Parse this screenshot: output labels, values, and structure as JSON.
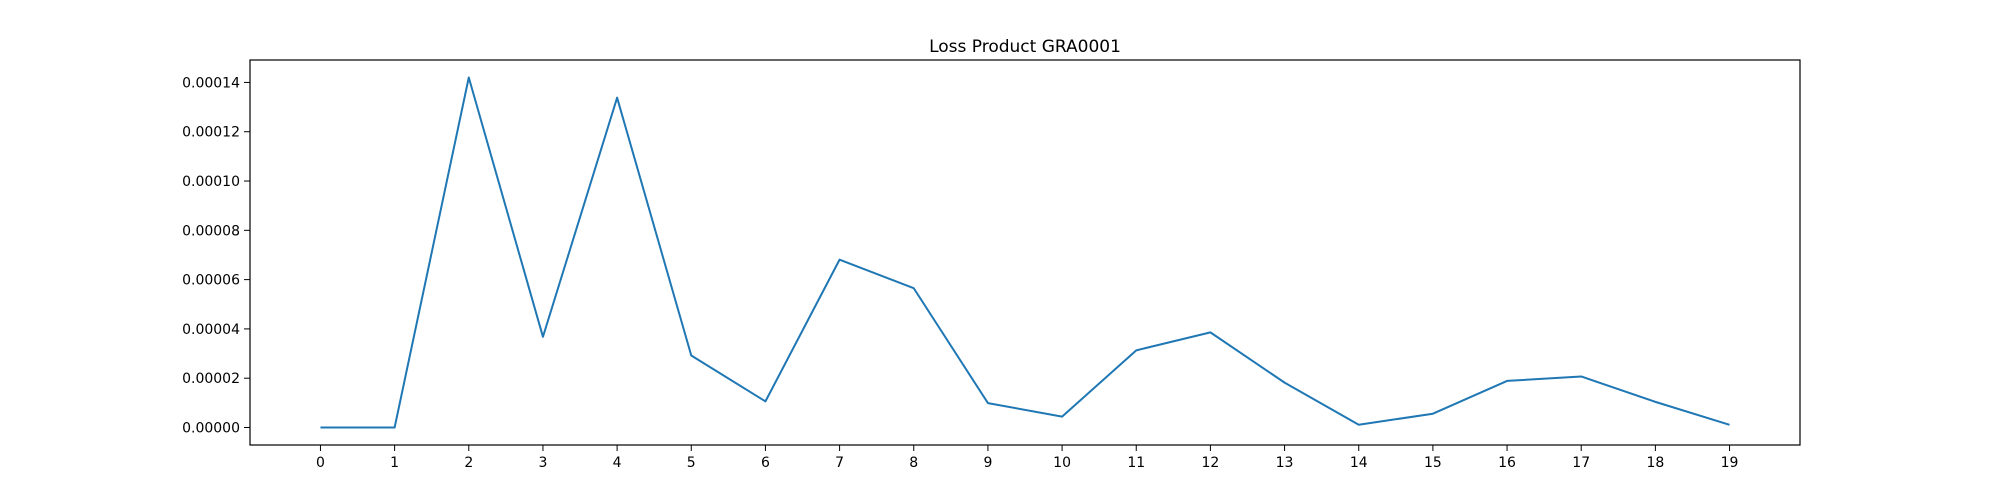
{
  "chart_data": {
    "type": "line",
    "title": "Loss Product GRA0001",
    "xlabel": "",
    "ylabel": "",
    "x": [
      0,
      1,
      2,
      3,
      4,
      5,
      6,
      7,
      8,
      9,
      10,
      11,
      12,
      13,
      14,
      15,
      16,
      17,
      18,
      19
    ],
    "series": [
      {
        "color": "#1f77b4",
        "values": [
          0.0,
          0.0,
          0.000142,
          3.68e-05,
          0.0001338,
          2.92e-05,
          1.06e-05,
          6.81e-05,
          5.65e-05,
          9.9e-06,
          4.4e-06,
          3.13e-05,
          3.86e-05,
          1.82e-05,
          1.1e-06,
          5.6e-06,
          1.89e-05,
          2.07e-05,
          1.04e-05,
          1.1e-06
        ]
      }
    ],
    "xticks": [
      "0",
      "1",
      "2",
      "3",
      "4",
      "5",
      "6",
      "7",
      "8",
      "9",
      "10",
      "11",
      "12",
      "13",
      "14",
      "15",
      "16",
      "17",
      "18",
      "19"
    ],
    "yticks": [
      "0.00000",
      "0.00002",
      "0.00004",
      "0.00006",
      "0.00008",
      "0.00010",
      "0.00012",
      "0.00014"
    ],
    "ylim": [
      -7.1e-06,
      0.0001491
    ],
    "xlim": [
      -0.95,
      19.95
    ],
    "grid": false,
    "legend": "none"
  }
}
